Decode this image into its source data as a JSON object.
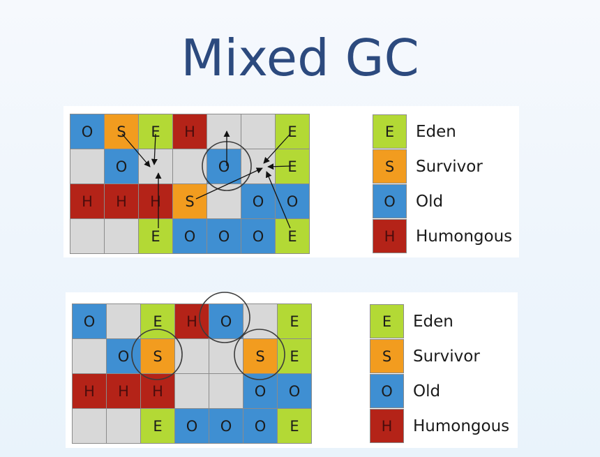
{
  "title": "Mixed GC",
  "colors": {
    "E": "#b3d935",
    "S": "#f29c1f",
    "O": "#3f8fd2",
    "H": "#b42318",
    "empty": "#d8d8d8",
    "circle": "#3b3b3b",
    "arrow": "#111111"
  },
  "legend": [
    {
      "letter": "E",
      "label": "Eden"
    },
    {
      "letter": "S",
      "label": "Survivor"
    },
    {
      "letter": "O",
      "label": "Old"
    },
    {
      "letter": "H",
      "label": "Humongous"
    }
  ],
  "diagrams": [
    {
      "grid": [
        [
          "O",
          "S",
          "E",
          "H",
          "",
          "",
          "E"
        ],
        [
          "",
          "O",
          "",
          "",
          "O",
          "",
          "E"
        ],
        [
          "H",
          "H",
          "H",
          "S",
          "",
          "O",
          "O"
        ],
        [
          "",
          "",
          "E",
          "O",
          "O",
          "O",
          "E"
        ]
      ]
    },
    {
      "grid": [
        [
          "O",
          "",
          "E",
          "H",
          "O",
          "",
          "E"
        ],
        [
          "",
          "O",
          "S",
          "",
          "",
          "S",
          "E"
        ],
        [
          "H",
          "H",
          "H",
          "",
          "",
          "O",
          "O"
        ],
        [
          "",
          "",
          "E",
          "O",
          "O",
          "O",
          "E"
        ]
      ]
    }
  ]
}
